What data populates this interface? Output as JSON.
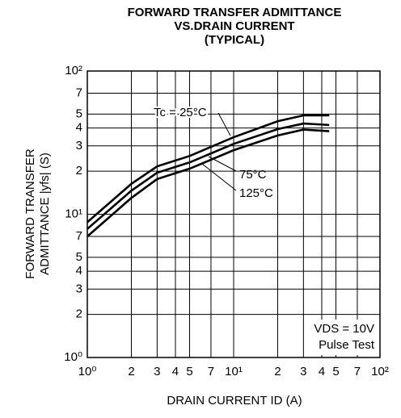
{
  "chart_data": {
    "type": "line",
    "title": [
      "FORWARD TRANSFER ADMITTANCE",
      "VS.DRAIN CURRENT",
      "(TYPICAL)"
    ],
    "x_label": "DRAIN CURRENT   ID (A)",
    "y_label": [
      "FORWARD TRANSFER",
      "ADMITTANCE  |yfs| (S)"
    ],
    "log_x": true,
    "log_y": true,
    "grid": true,
    "xlim": [
      1,
      100
    ],
    "ylim": [
      1,
      100
    ],
    "xticks": [
      {
        "value": 1,
        "label": "10⁰"
      },
      2,
      3,
      4,
      5,
      7,
      {
        "value": 10,
        "label": "10¹"
      },
      2,
      3,
      4,
      5,
      7,
      {
        "value": 100,
        "label": "10²"
      }
    ],
    "yticks": [
      {
        "value": 1,
        "label": "10⁰"
      },
      2,
      3,
      4,
      5,
      7,
      {
        "value": 10,
        "label": "10¹"
      },
      2,
      3,
      4,
      5,
      7,
      {
        "value": 100,
        "label": "10²"
      }
    ],
    "x": [
      1,
      2,
      3,
      5,
      10,
      20,
      30,
      45
    ],
    "series": [
      {
        "name": "Tc = 25°C",
        "color": "#000000",
        "values": [
          8.8,
          16.3,
          21.6,
          25.5,
          34.5,
          44.6,
          49,
          49
        ]
      },
      {
        "name": "75°C",
        "color": "#000000",
        "values": [
          7.9,
          14.6,
          19.5,
          23,
          31,
          39.3,
          43,
          42
        ]
      },
      {
        "name": "125°C",
        "color": "#000000",
        "values": [
          7.0,
          13,
          17.6,
          20.8,
          28,
          35.5,
          39,
          38
        ]
      }
    ],
    "annotations": [
      "VDS = 10V",
      "Pulse Test"
    ]
  }
}
